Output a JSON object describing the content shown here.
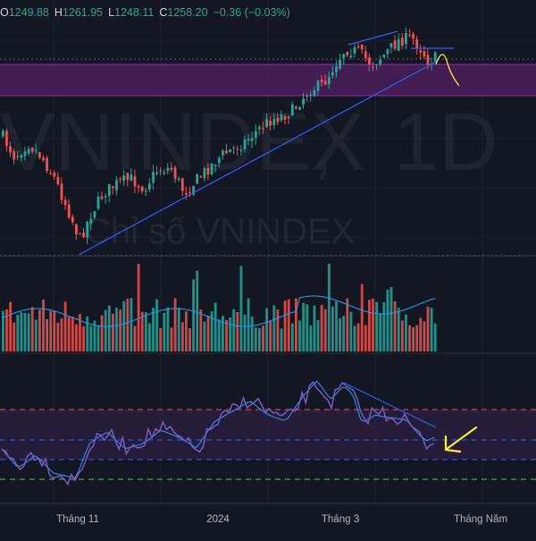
{
  "chart_data": {
    "type": "candlestick",
    "symbol": "VNINDEX",
    "interval": "1D",
    "description": "Chỉ số VNINDEX",
    "ohlc_legend": {
      "open_label": "O",
      "open": "1249.88",
      "high_label": "H",
      "high": "1261.95",
      "low_label": "L",
      "low": "1248.11",
      "close_label": "C",
      "close": "1258.20",
      "change": "−0.36 (−0.03%)"
    },
    "x_tick_labels": [
      "Tháng 11",
      "2024",
      "Tháng 3",
      "Tháng Năm"
    ],
    "price_panel": {
      "approx_range": [
        1080,
        1300
      ],
      "approx_trend": [
        {
          "period": "mid-Oct",
          "close": 1150
        },
        {
          "period": "early-Nov",
          "close": 1025
        },
        {
          "period": "early-Jan",
          "close": 1130
        },
        {
          "period": "late-Mar",
          "close": 1285
        },
        {
          "period": "early-Apr",
          "close": 1288
        },
        {
          "period": "mid-Apr",
          "close": 1258
        }
      ]
    },
    "volume_panel": {
      "type": "bar",
      "has_moving_average": true
    },
    "rsi_panel": {
      "type": "line",
      "levels": [
        "overbought",
        "midline",
        "oversold"
      ],
      "has_signal_line": true
    },
    "colors": {
      "up": "#26a69a",
      "down": "#ef5350",
      "background": "#131722",
      "zone": "#4a1f5a",
      "rsi": "#7e57c2",
      "rsi_ma": "#2196f3",
      "trendline": "#2962ff",
      "forecast": "#ffeb3b",
      "arrow": "#ffeb3b"
    },
    "grid": true
  }
}
